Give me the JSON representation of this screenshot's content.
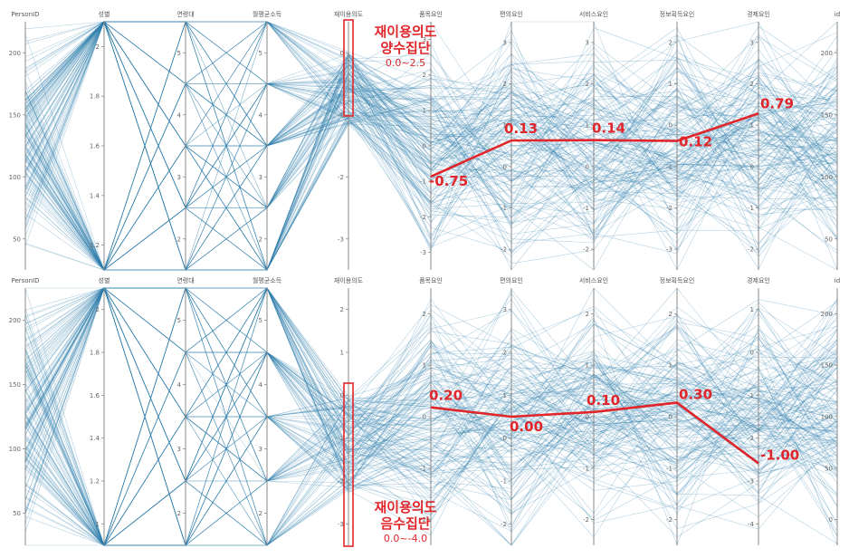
{
  "chart_data": [
    {
      "type": "parallel-coordinates",
      "panel": "top",
      "axes": [
        "PersonID",
        "성별",
        "연령대",
        "월평균소득",
        "재이용의도",
        "품목요인",
        "편의요인",
        "서비스요인",
        "정보획득요인",
        "경제요인",
        "id"
      ],
      "ticks": [
        [
          "200",
          "150",
          "100",
          "50"
        ],
        [
          "2",
          "1.8",
          "1.6",
          "1.4",
          "1.2"
        ],
        [
          "5",
          "4",
          "3",
          "2"
        ],
        [
          "5",
          "4",
          "3",
          "2"
        ],
        [
          "0",
          "-1",
          "-2",
          "-3"
        ],
        [
          "3",
          "2",
          "1",
          "0",
          "-1",
          "-2",
          "-3"
        ],
        [
          "3",
          "2",
          "1",
          "0",
          "-1",
          "-2"
        ],
        [
          "3",
          "2",
          "1",
          "0",
          "-1",
          "-2"
        ],
        [
          "2",
          "1",
          "0",
          "-1",
          "-2",
          "-3"
        ],
        [
          "3",
          "2",
          "1",
          "0",
          "-1",
          "-2"
        ],
        [
          "200",
          "150",
          "100",
          "50"
        ]
      ],
      "highlight_series": {
        "name": "재이용의도 양수집단",
        "range": "0.0~2.5",
        "values": [
          -0.75,
          0.13,
          0.14,
          0.12,
          0.79
        ]
      },
      "mean_labels": [
        "-0.75",
        "0.13",
        "0.14",
        "0.12",
        "0.79"
      ],
      "group_label": [
        "재이용의도",
        "양수집단"
      ],
      "range_label": "0.0~2.5"
    },
    {
      "type": "parallel-coordinates",
      "panel": "bottom",
      "axes": [
        "PersonID",
        "성별",
        "연령대",
        "월평균소득",
        "재이용의도",
        "품목요인",
        "편의요인",
        "서비스요인",
        "정보획득요인",
        "경제요인",
        "id"
      ],
      "ticks": [
        [
          "200",
          "150",
          "100",
          "50"
        ],
        [
          "2",
          "1.8",
          "1.6",
          "1.4",
          "1.2",
          "1"
        ],
        [
          "5",
          "4",
          "3",
          "2"
        ],
        [
          "5",
          "4",
          "3",
          "2"
        ],
        [
          "2",
          "1",
          "0",
          "-1",
          "-2",
          "-3"
        ],
        [
          "2",
          "1",
          "0",
          "-1",
          "-2"
        ],
        [
          "3",
          "2",
          "1",
          "0",
          "-1",
          "-2"
        ],
        [
          "2",
          "1",
          "0",
          "-1",
          "-2"
        ],
        [
          "2",
          "1",
          "0",
          "-1",
          "-2"
        ],
        [
          "1",
          "0",
          "-1",
          "-2",
          "-3",
          "-4"
        ],
        [
          "200",
          "150",
          "100",
          "50",
          "0"
        ]
      ],
      "highlight_series": {
        "name": "재이용의도 음수집단",
        "range": "0.0~-4.0",
        "values": [
          0.2,
          0.0,
          0.1,
          0.3,
          -1.0
        ]
      },
      "mean_labels": [
        "0.20",
        "0.00",
        "0.10",
        "0.30",
        "-1.00"
      ],
      "group_label": [
        "재이용의도",
        "음수집단"
      ],
      "range_label": "0.0~-4.0"
    }
  ],
  "colors": {
    "lines": "#2f7fab",
    "highlight": "#e0262a",
    "axis": "#888888"
  }
}
